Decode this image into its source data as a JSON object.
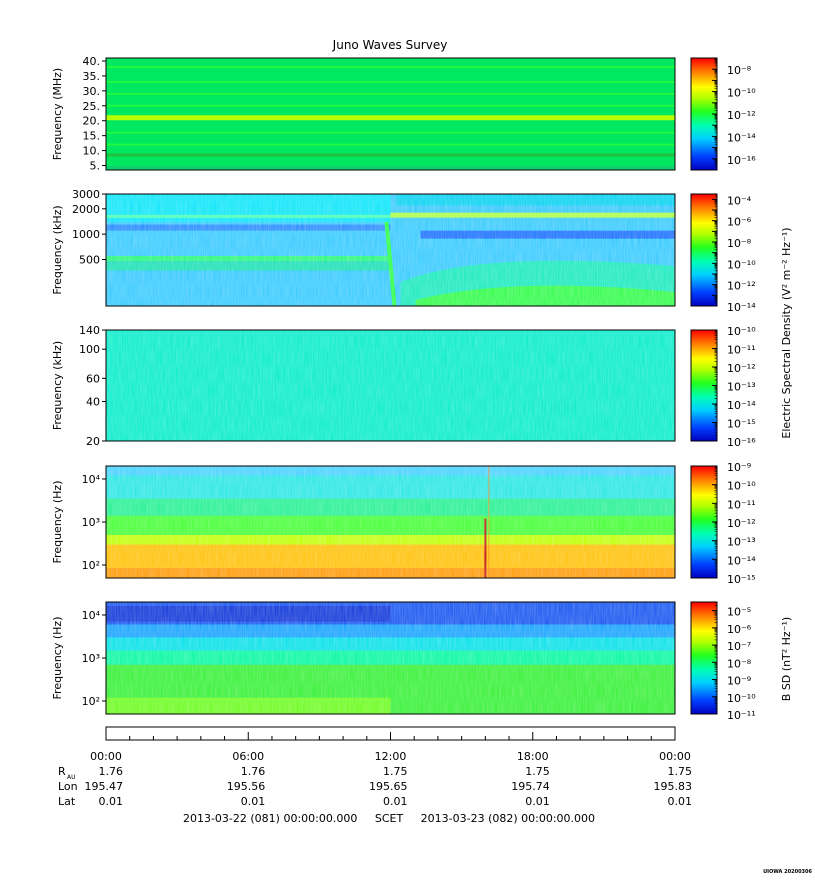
{
  "title": "Juno Waves Survey",
  "colorbar_labels": {
    "electric": "Electric Spectral Density (V² m⁻² Hz⁻¹)",
    "magnetic": "B SD (nT² Hz⁻¹)"
  },
  "panels": [
    {
      "ylabel": "Frequency (MHz)",
      "y_scale": "linear",
      "ylim": [
        3.5,
        41
      ],
      "yticks": [
        {
          "v": 5,
          "t": "5."
        },
        {
          "v": 10,
          "t": "10."
        },
        {
          "v": 15,
          "t": "15."
        },
        {
          "v": 20,
          "t": "20."
        },
        {
          "v": 25,
          "t": "25."
        },
        {
          "v": 30,
          "t": "30."
        },
        {
          "v": 35,
          "t": "35."
        },
        {
          "v": 40,
          "t": "40."
        }
      ],
      "colorbar": {
        "min_exp": -17,
        "max_exp": -7,
        "ticks": [
          -16,
          -14,
          -12,
          -10,
          -8
        ]
      },
      "pattern": "hfr_high"
    },
    {
      "ylabel": "Frequency (kHz)",
      "y_scale": "log",
      "ylim": [
        140,
        3000
      ],
      "yticks": [
        {
          "v": 500,
          "t": "500"
        },
        {
          "v": 1000,
          "t": "1000"
        },
        {
          "v": 2000,
          "t": "2000"
        },
        {
          "v": 3000,
          "t": "3000"
        }
      ],
      "colorbar": {
        "min_exp": -14,
        "max_exp": -3.5,
        "ticks": [
          -14,
          -12,
          -10,
          -8,
          -6,
          -4
        ]
      },
      "pattern": "hfr_low"
    },
    {
      "ylabel": "Frequency (kHz)",
      "y_scale": "log",
      "ylim": [
        20,
        140
      ],
      "yticks": [
        {
          "v": 20,
          "t": "20"
        },
        {
          "v": 40,
          "t": "40"
        },
        {
          "v": 60,
          "t": "60"
        },
        {
          "v": 100,
          "t": "100"
        },
        {
          "v": 140,
          "t": "140"
        }
      ],
      "colorbar": {
        "min_exp": -16,
        "max_exp": -10,
        "ticks": [
          -16,
          -15,
          -14,
          -13,
          -12,
          -11,
          -10
        ]
      },
      "pattern": "lfr_high"
    },
    {
      "ylabel": "Frequency (Hz)",
      "y_scale": "log",
      "ylim": [
        50,
        20000
      ],
      "yticks": [
        {
          "v": 100,
          "t": "10²"
        },
        {
          "v": 1000,
          "t": "10³"
        },
        {
          "v": 10000,
          "t": "10⁴"
        }
      ],
      "colorbar": {
        "min_exp": -15,
        "max_exp": -9,
        "ticks": [
          -15,
          -14,
          -13,
          -12,
          -11,
          -10,
          -9
        ]
      },
      "pattern": "lfr_e"
    },
    {
      "ylabel": "Frequency (Hz)",
      "y_scale": "log",
      "ylim": [
        50,
        20000
      ],
      "yticks": [
        {
          "v": 100,
          "t": "10²"
        },
        {
          "v": 1000,
          "t": "10³"
        },
        {
          "v": 10000,
          "t": "10⁴"
        }
      ],
      "colorbar": {
        "min_exp": -11,
        "max_exp": -4.5,
        "ticks": [
          -11,
          -10,
          -9,
          -8,
          -7,
          -6,
          -5
        ]
      },
      "pattern": "lfr_b"
    }
  ],
  "x_axis": {
    "times": [
      "00:00",
      "06:00",
      "12:00",
      "18:00",
      "00:00"
    ],
    "rows": [
      {
        "label": "R",
        "sub": "AU",
        "values": [
          "1.76",
          "1.76",
          "1.75",
          "1.75",
          "1.75"
        ]
      },
      {
        "label": "Lon",
        "sub": "",
        "values": [
          "195.47",
          "195.56",
          "195.65",
          "195.74",
          "195.83"
        ]
      },
      {
        "label": "Lat",
        "sub": "",
        "values": [
          "0.01",
          "0.01",
          "0.01",
          "0.01",
          "0.01"
        ]
      }
    ],
    "footer": "2013-03-22 (081) 00:00:00.000     SCET     2013-03-23 (082) 00:00:00.000"
  },
  "watermark": "UIOWA 20200306",
  "chart_data": {
    "type": "heatmap",
    "title": "Juno Waves Survey",
    "x_range": [
      "2013-03-22 00:00",
      "2013-03-23 00:00"
    ],
    "series": [
      {
        "name": "Frequency (MHz)",
        "ylim": [
          3.5,
          41
        ],
        "colorbar_range_exp": [
          -17,
          -7
        ]
      },
      {
        "name": "Frequency (kHz)",
        "ylim": [
          140,
          3000
        ],
        "colorbar_range_exp": [
          -14,
          -3.5
        ]
      },
      {
        "name": "Frequency (kHz)",
        "ylim": [
          20,
          140
        ],
        "colorbar_range_exp": [
          -16,
          -10
        ]
      },
      {
        "name": "Frequency (Hz)",
        "ylim": [
          50,
          20000
        ],
        "colorbar_range_exp": [
          -15,
          -9
        ]
      },
      {
        "name": "Frequency (Hz)",
        "ylim": [
          50,
          20000
        ],
        "colorbar_range_exp": [
          -11,
          -4.5
        ]
      }
    ]
  }
}
